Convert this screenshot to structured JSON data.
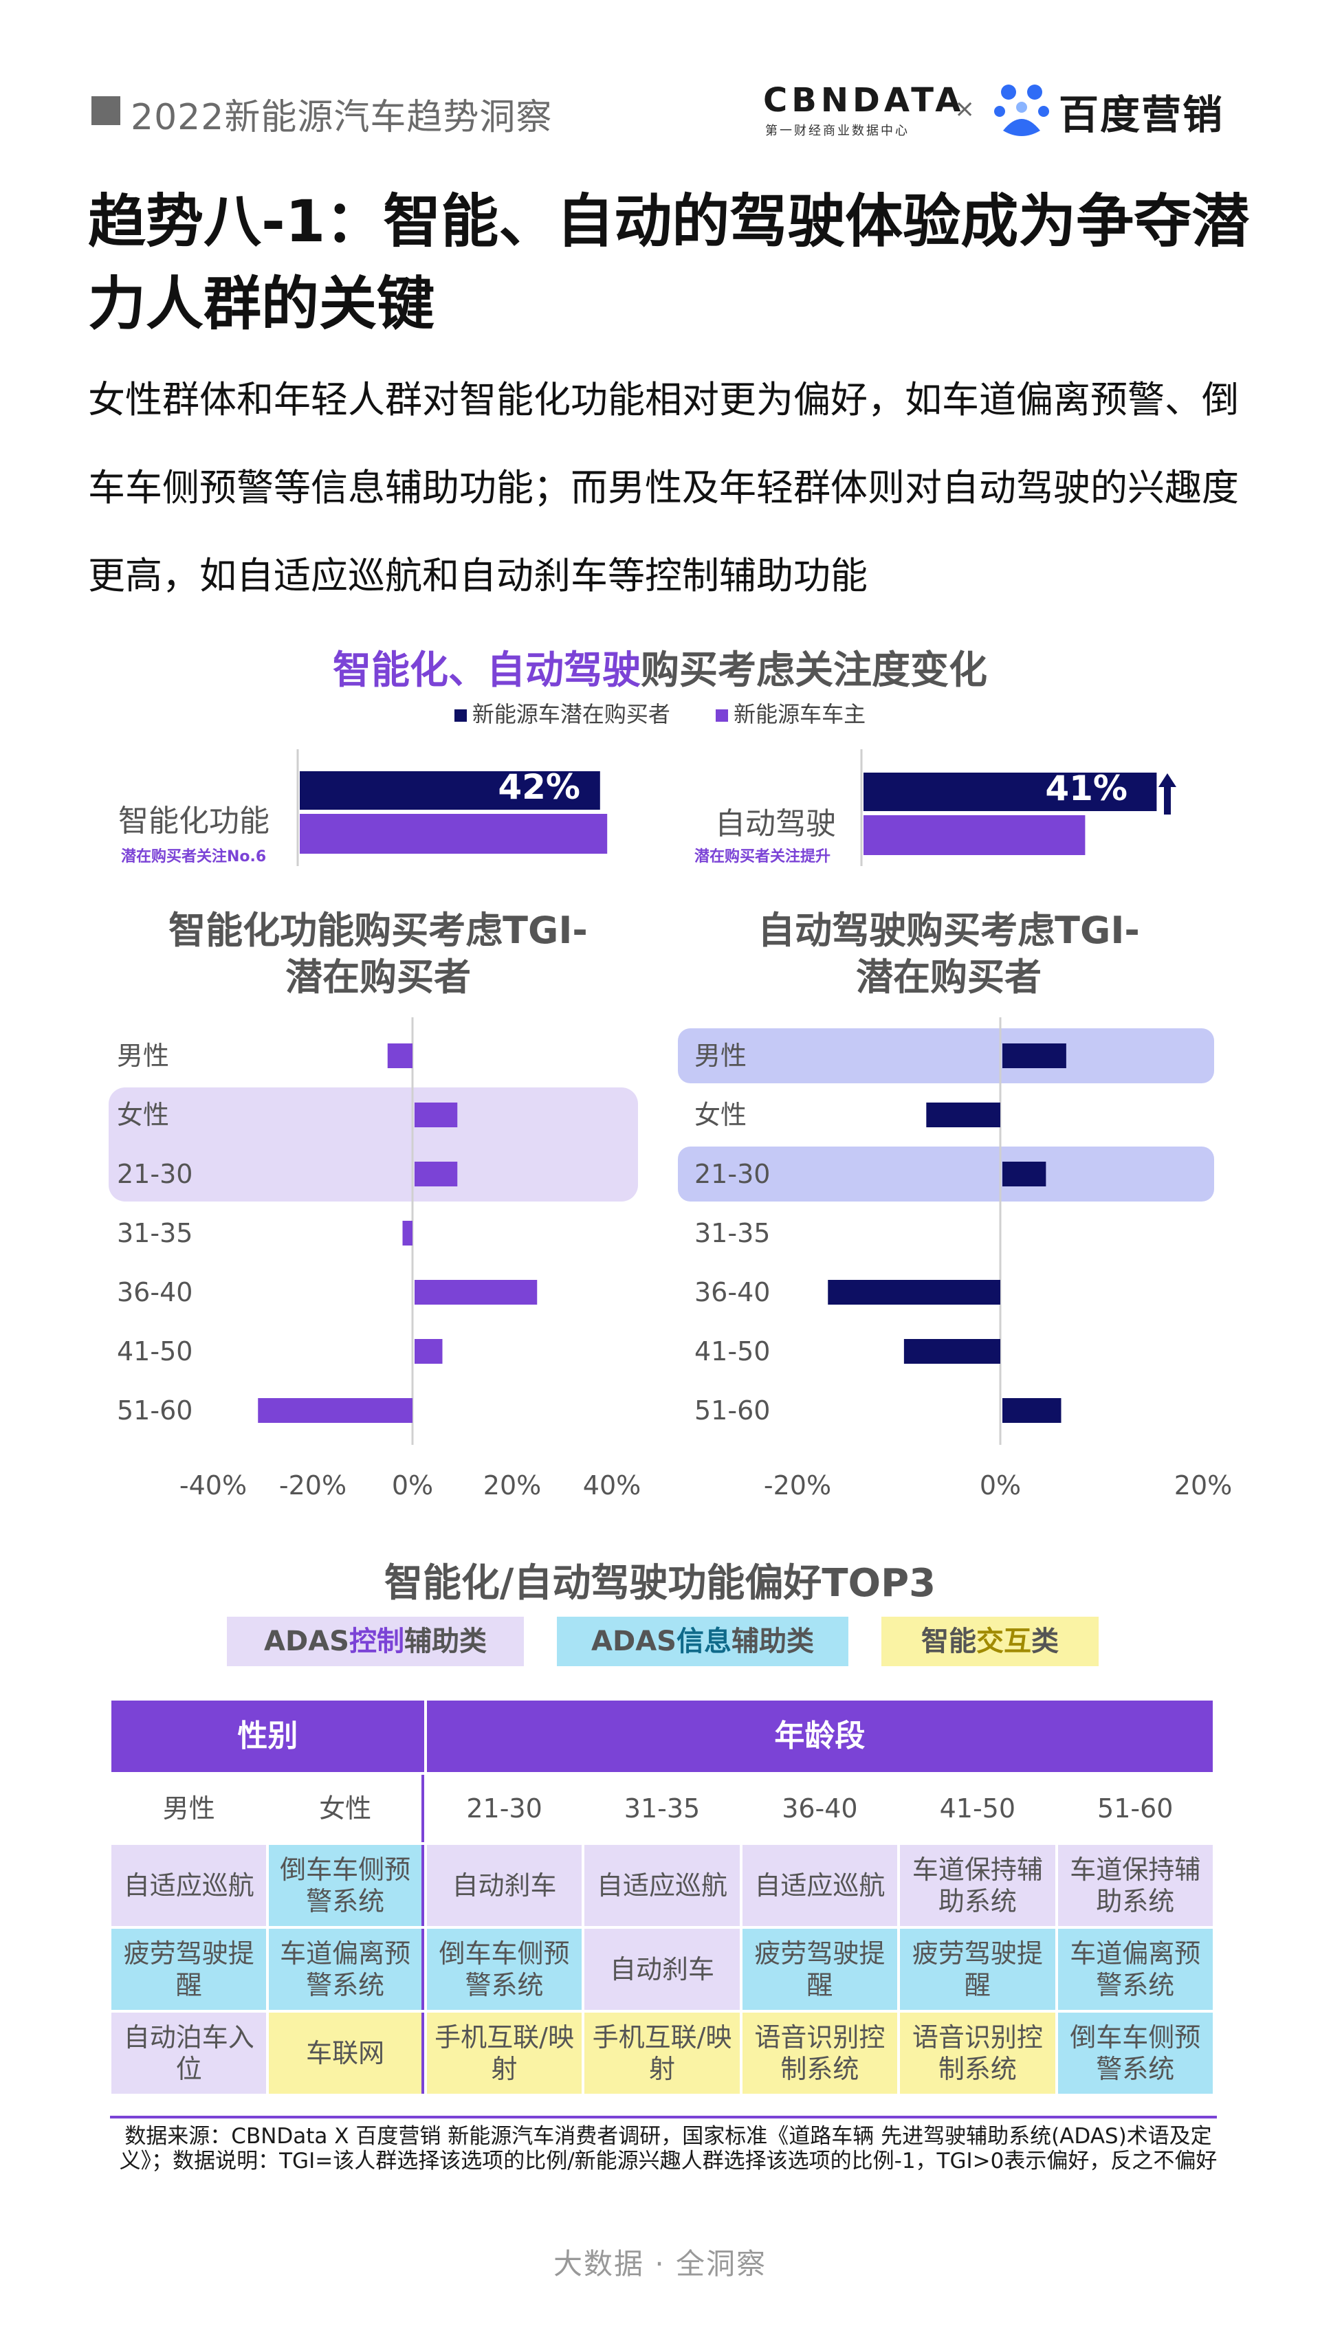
{
  "header": {
    "report_title": "2022新能源汽车趋势洞察",
    "logo_cbndata": "CBNDATA",
    "logo_cbndata_sub": "第一财经商业数据中心",
    "logo_sep": "×",
    "logo_baidu": "百度营销"
  },
  "title": "趋势八-1：智能、自动的驾驶体验成为争夺潜力人群的关键",
  "description": "女性群体和年轻人群对智能化功能相对更为偏好，如车道偏离预警、倒车车侧预警等信息辅助功能；而男性及年轻群体则对自动驾驶的兴趣度更高，如自适应巡航和自动刹车等控制辅助功能",
  "colors": {
    "purple": "#7b43d6",
    "navy": "#0d0f63",
    "highlight_lavender": "#e3daf7",
    "highlight_blue": "#c5c9f6"
  },
  "attention_chart": {
    "title_highlight_1": "智能化",
    "title_sep": "、",
    "title_highlight_2": "自动驾驶",
    "title_rest": "购买考虑关注度变化",
    "legend_potential": "新能源车潜在购买者",
    "legend_owner": "新能源车车主",
    "smart_label": "智能化功能",
    "smart_note": "潜在购买者关注No.6",
    "smart_value_label": "42%",
    "auto_label": "自动驾驶",
    "auto_note_prefix": "潜在购买者关注",
    "auto_note_bold": "提升",
    "auto_value_label": "41%",
    "arrow_icon": "up-arrow-icon"
  },
  "tgi_smart": {
    "title_line1": "智能化功能购买考虑TGI-",
    "title_line2": "潜在购买者"
  },
  "tgi_auto": {
    "title_line1": "自动驾驶购买考虑TGI-",
    "title_line2": "潜在购买者"
  },
  "chart_data": [
    {
      "type": "bar",
      "orientation": "horizontal",
      "title": "智能化、自动驾驶购买考虑关注度变化",
      "categories": [
        "智能化功能",
        "自动驾驶"
      ],
      "series": [
        {
          "name": "新能源车潜在购买者",
          "values": [
            42,
            41
          ]
        },
        {
          "name": "新能源车车主",
          "values": [
            43,
            31
          ]
        }
      ]
    },
    {
      "type": "bar",
      "orientation": "horizontal",
      "title": "智能化功能购买考虑TGI-潜在购买者",
      "categories": [
        "男性",
        "女性",
        "21-30",
        "31-35",
        "36-40",
        "41-50",
        "51-60"
      ],
      "values": [
        -5,
        9,
        9,
        -2,
        25,
        6,
        -31
      ],
      "xlim": [
        -40,
        40
      ],
      "xticks": [
        "-40%",
        "-20%",
        "0%",
        "20%",
        "40%"
      ],
      "highlighted": [
        "女性",
        "21-30"
      ]
    },
    {
      "type": "bar",
      "orientation": "horizontal",
      "title": "自动驾驶购买考虑TGI-潜在购买者",
      "categories": [
        "男性",
        "女性",
        "21-30",
        "31-35",
        "36-40",
        "41-50",
        "51-60"
      ],
      "values": [
        6.5,
        -7.3,
        4.5,
        0,
        -17,
        -9.5,
        6
      ],
      "xlim": [
        -20,
        20
      ],
      "xticks": [
        "-20%",
        "0%",
        "20%"
      ],
      "highlighted": [
        "男性",
        "21-30"
      ]
    }
  ],
  "preferences": {
    "title": "智能化/自动驾驶功能偏好TOP3",
    "legend": [
      {
        "pre": "ADAS",
        "hl": "控制",
        "post": "辅助类",
        "hl_color": "#7b43d6"
      },
      {
        "pre": "ADAS",
        "hl": "信息",
        "post": "辅助类",
        "hl_color": "#0f6a8a"
      },
      {
        "pre": "智能",
        "hl": "交互",
        "post": "类",
        "hl_color": "#a08a00"
      }
    ],
    "group_gender": "性别",
    "group_age": "年龄段",
    "columns": [
      "男性",
      "女性",
      "21-30",
      "31-35",
      "36-40",
      "41-50",
      "51-60"
    ],
    "rows": [
      [
        "自适应巡航",
        "倒车车侧预警系统",
        "自动刹车",
        "自适应巡航",
        "自适应巡航",
        "车道保持辅助系统",
        "车道保持辅助系统"
      ],
      [
        "疲劳驾驶提醒",
        "车道偏离预警系统",
        "倒车车侧预警系统",
        "自动刹车",
        "疲劳驾驶提醒",
        "疲劳驾驶提醒",
        "车道偏离预警系统"
      ],
      [
        "自动泊车入位",
        "车联网",
        "手机互联/映射",
        "手机互联/映射",
        "语音识别控制系统",
        "语音识别控制系统",
        "倒车车侧预警系统"
      ]
    ],
    "row_types": [
      [
        "ctrl",
        "info",
        "ctrl",
        "ctrl",
        "ctrl",
        "ctrl",
        "ctrl"
      ],
      [
        "info",
        "info",
        "info",
        "ctrl",
        "info",
        "info",
        "info"
      ],
      [
        "ctrl",
        "inter",
        "inter",
        "inter",
        "inter",
        "inter",
        "info"
      ]
    ]
  },
  "footnote": "数据来源：CBNData X 百度营销 新能源汽车消费者调研，国家标准《道路车辆 先进驾驶辅助系统(ADAS)术语及定义》；数据说明：TGI=该人群选择该选项的比例/新能源兴趣人群选择该选项的比例-1，TGI>0表示偏好，反之不偏好",
  "bottom_slogan": "大数据 · 全洞察"
}
